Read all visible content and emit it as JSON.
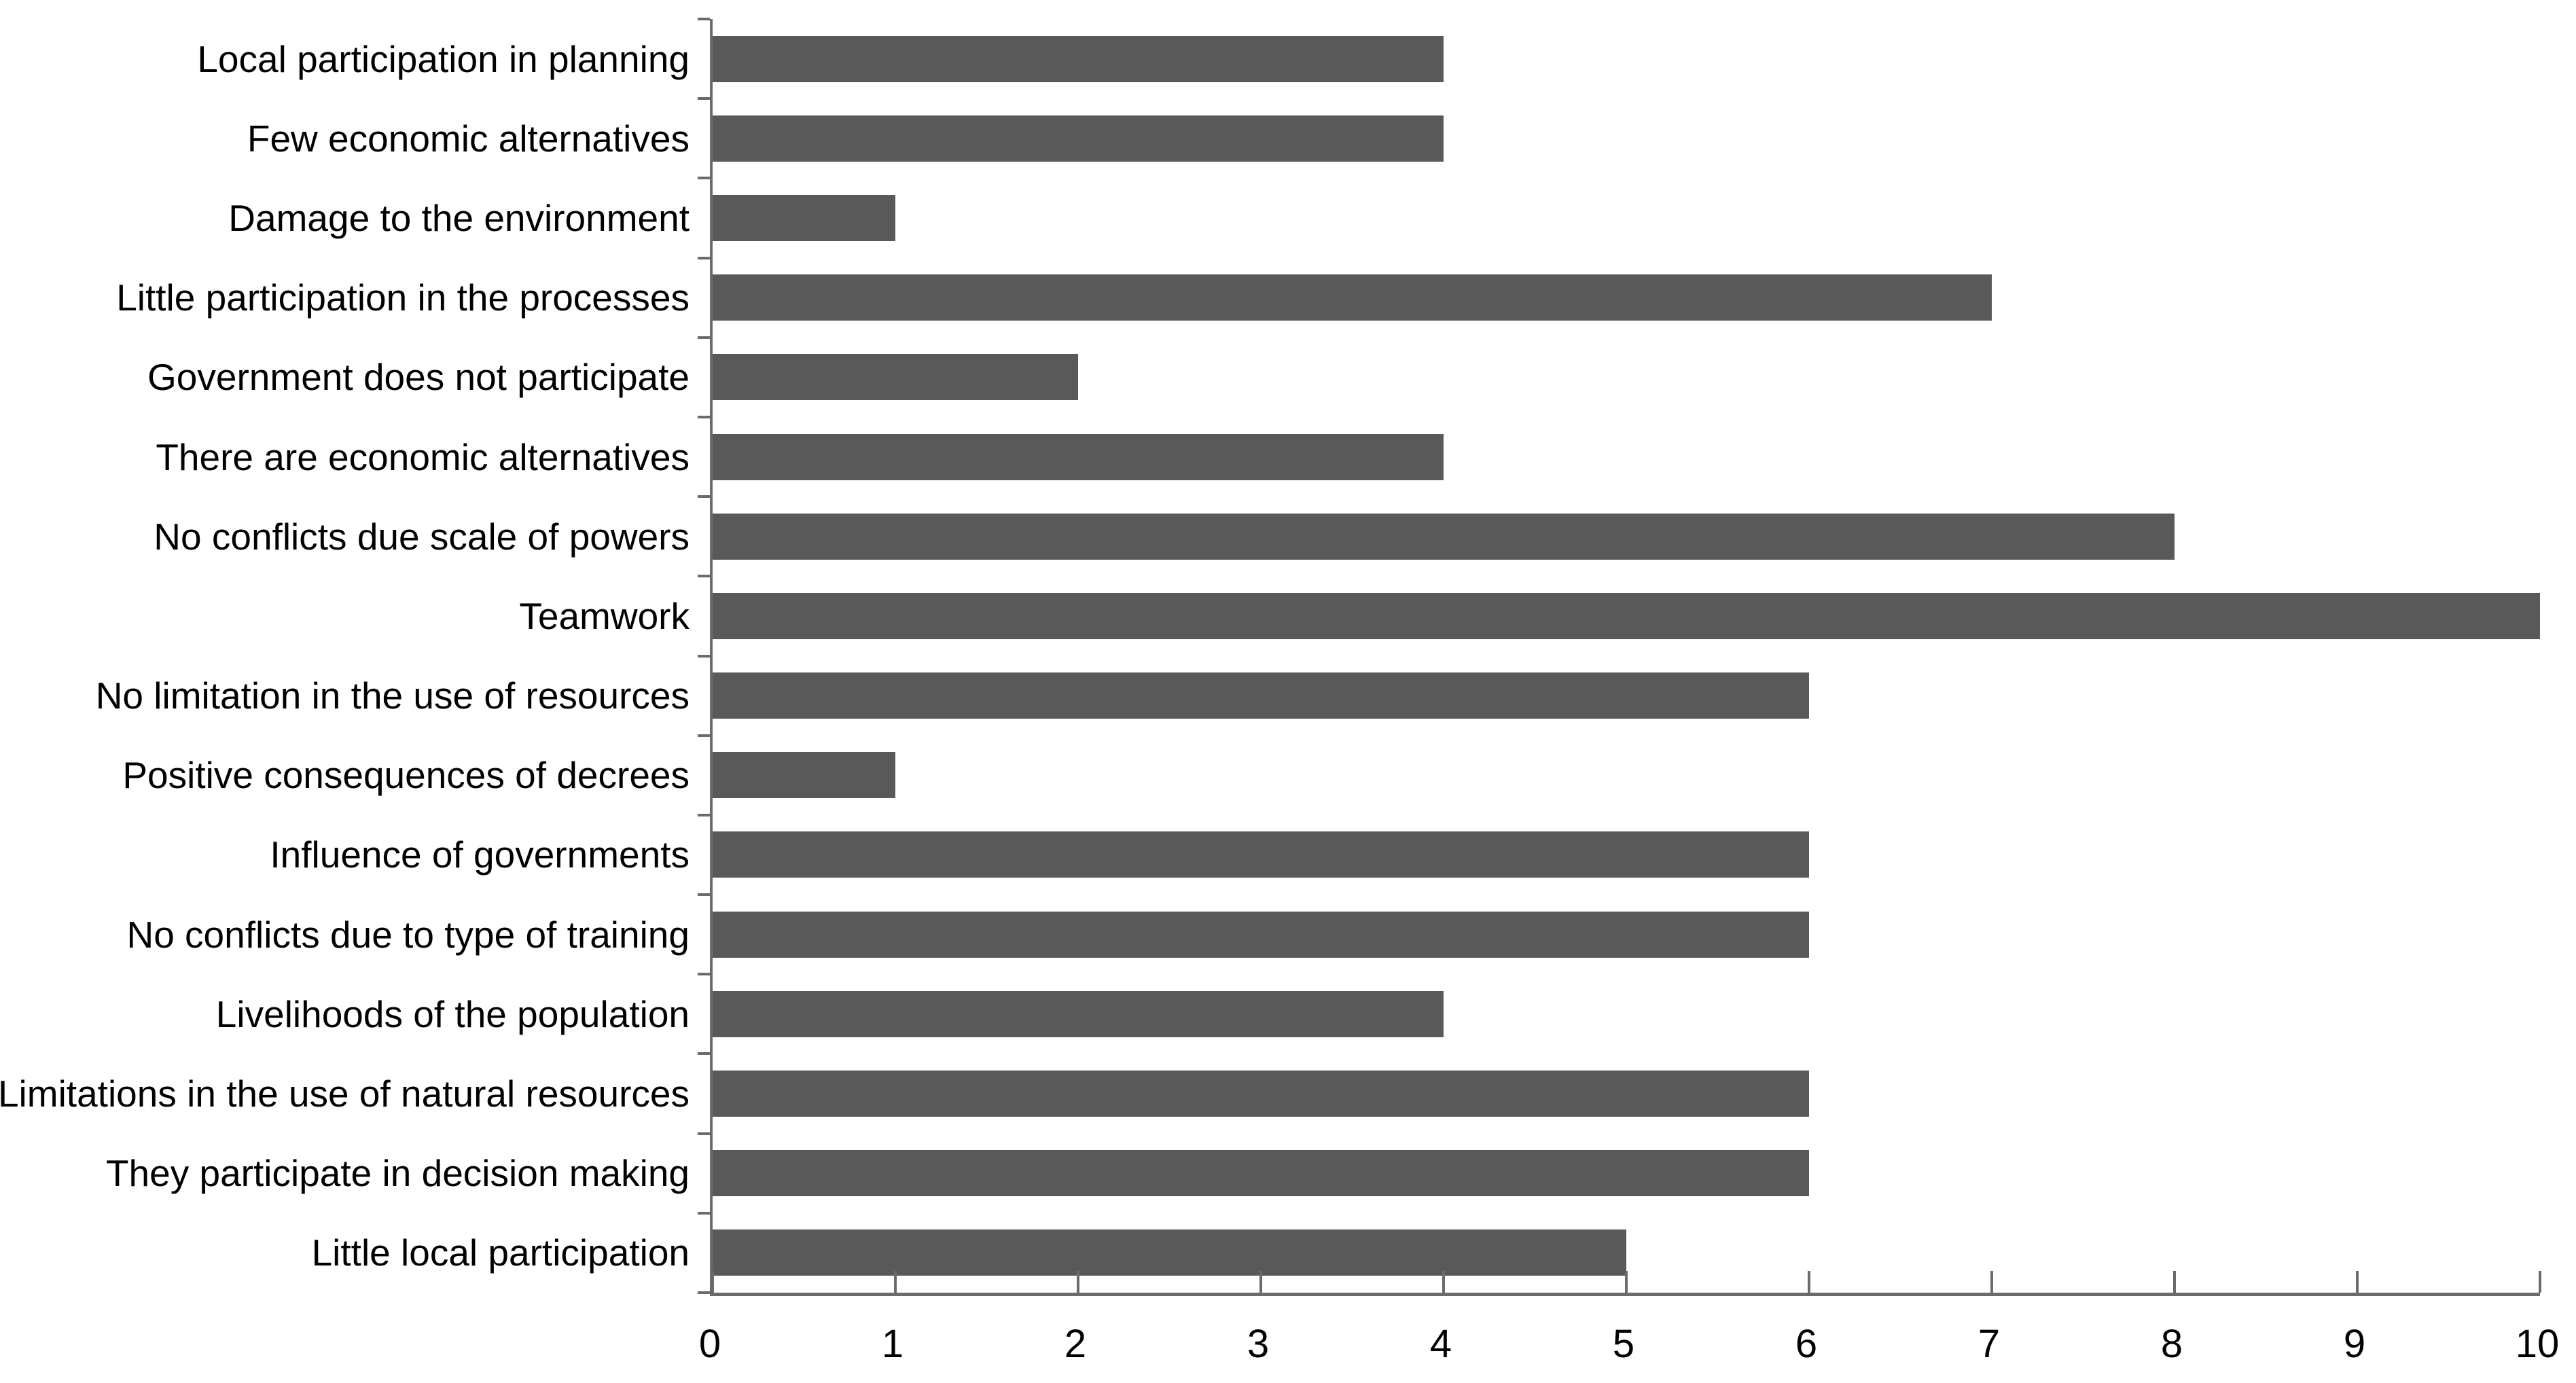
{
  "chart_data": {
    "type": "bar",
    "orientation": "horizontal",
    "title": "",
    "xlabel": "",
    "ylabel": "",
    "xlim": [
      0,
      10
    ],
    "x_ticks": [
      "0",
      "1",
      "2",
      "3",
      "4",
      "5",
      "6",
      "7",
      "8",
      "9",
      "10"
    ],
    "grid": false,
    "legend": null,
    "bar_color": "#595959",
    "axis_color": "#6b6b6b",
    "categories": [
      "Local participation in planning",
      "Few economic alternatives",
      "Damage to the environment",
      "Little participation in the processes",
      "Government does not participate",
      "There are economic alternatives",
      "No conflicts due scale of powers",
      "Teamwork",
      "No limitation in the use of resources",
      "Positive consequences of decrees",
      "Influence of governments",
      "No conflicts due to type of training",
      "Livelihoods of the population",
      "Limitations in the use of natural resources",
      "They participate in decision making",
      "Little local participation"
    ],
    "values": [
      4,
      4,
      1,
      7,
      2,
      4,
      8,
      10,
      6,
      1,
      6,
      6,
      4,
      6,
      6,
      5
    ]
  }
}
